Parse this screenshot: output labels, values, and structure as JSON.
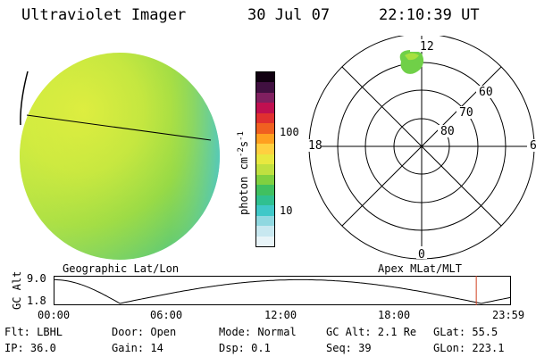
{
  "header": {
    "instrument": "Ultraviolet Imager",
    "date": "30 Jul 07",
    "time": "22:10:39 UT"
  },
  "colorbar": {
    "unit_label": "photon cm",
    "exp1": "-2",
    "mid": "s",
    "exp2": "-1",
    "ticks": [
      "100",
      "10"
    ],
    "colors": [
      "#e8f4f8",
      "#c8e8f0",
      "#90d8e0",
      "#40c8c8",
      "#30c090",
      "#40c060",
      "#80d040",
      "#c0e040",
      "#e8e840",
      "#ffd040",
      "#ffa020",
      "#f06020",
      "#e03030",
      "#c01050",
      "#802060",
      "#401040",
      "#100010"
    ]
  },
  "polar": {
    "mlt_labels": {
      "top": "12",
      "left": "18",
      "right": "6",
      "bottom": "0"
    },
    "lat_labels": [
      "60",
      "70",
      "80"
    ],
    "caption": "Apex MLat/MLT"
  },
  "geo": {
    "caption": "Geographic Lat/Lon"
  },
  "orbit": {
    "ylabel": "GC Alt",
    "yticks": [
      "9.0",
      "1.8"
    ],
    "xticks": [
      "00:00",
      "06:00",
      "12:00",
      "18:00",
      "23:59"
    ],
    "marker_time_fraction": 0.9241
  },
  "footer": {
    "flt": "Flt: LBHL",
    "door": "Door: Open",
    "mode": "Mode: Normal",
    "gcalt": "GC Alt: 2.1 Re",
    "glat": "GLat:  55.5",
    "ip": "IP: 36.0",
    "gain": "Gain: 14",
    "dsp": "Dsp:    0.1",
    "seq": "Seq: 39",
    "glon": "GLon: 223.1"
  },
  "colors": {
    "disk_main": "#a8e040",
    "disk_bright": "#e0f040",
    "disk_edge": "#40c8c0",
    "oval_spot": "#70d048",
    "marker": "#d04020"
  }
}
